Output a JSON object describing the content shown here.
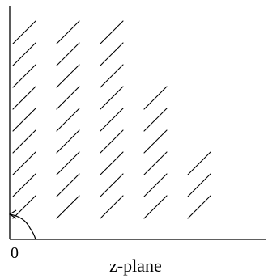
{
  "diagram": {
    "origin_label": "0",
    "plane_label": "z-plane",
    "hatch_angle_deg": 45,
    "stroke_color": "#000000",
    "background_color": "#ffffff"
  }
}
